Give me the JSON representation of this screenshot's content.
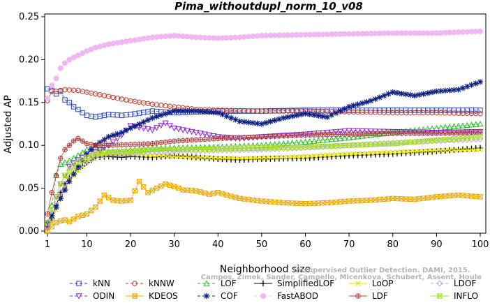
{
  "chart_data": {
    "type": "line",
    "title": "Pima_withoutdupl_norm_10_v08",
    "xlabel": "Neighborhood size",
    "ylabel": "Adjusted AP",
    "xlim": [
      1,
      100
    ],
    "ylim": [
      0,
      0.25
    ],
    "xticks": [
      1,
      10,
      20,
      30,
      40,
      50,
      60,
      70,
      80,
      90,
      100
    ],
    "yticks": [
      0.0,
      0.05,
      0.1,
      0.15,
      0.2,
      0.25
    ],
    "ytick_labels": [
      "0.00",
      "0.05",
      "0.10",
      "0.15",
      "0.20",
      "0.25"
    ],
    "grid": false,
    "legend_position": "bottom",
    "credit": "Campos, Zimek, Sander, Campello, Micenkova, Schubert, Assent, Houle",
    "credit_line1": "Unsupervised Outlier Detection. DAMI, 2015.",
    "series": [
      {
        "name": "kNN",
        "color": "#1f3fbf",
        "marker": "square",
        "dash": "4,3",
        "points": [
          [
            1,
            0.166
          ],
          [
            2,
            0.164
          ],
          [
            3,
            0.16
          ],
          [
            4,
            0.163
          ],
          [
            5,
            0.153
          ],
          [
            6,
            0.15
          ],
          [
            7,
            0.145
          ],
          [
            8,
            0.142
          ],
          [
            9,
            0.138
          ],
          [
            10,
            0.135
          ],
          [
            12,
            0.133
          ],
          [
            15,
            0.136
          ],
          [
            18,
            0.135
          ],
          [
            20,
            0.136
          ],
          [
            25,
            0.14
          ],
          [
            30,
            0.138
          ],
          [
            35,
            0.139
          ],
          [
            40,
            0.14
          ],
          [
            50,
            0.14
          ],
          [
            60,
            0.141
          ],
          [
            70,
            0.141
          ],
          [
            80,
            0.141
          ],
          [
            90,
            0.141
          ],
          [
            100,
            0.141
          ]
        ]
      },
      {
        "name": "kNNW",
        "color": "#c0352a",
        "marker": "circle",
        "dash": "4,3",
        "points": [
          [
            1,
            0.152
          ],
          [
            2,
            0.163
          ],
          [
            3,
            0.163
          ],
          [
            5,
            0.165
          ],
          [
            8,
            0.164
          ],
          [
            10,
            0.162
          ],
          [
            12,
            0.16
          ],
          [
            15,
            0.157
          ],
          [
            20,
            0.152
          ],
          [
            25,
            0.148
          ],
          [
            30,
            0.145
          ],
          [
            35,
            0.142
          ],
          [
            40,
            0.141
          ],
          [
            50,
            0.14
          ],
          [
            60,
            0.14
          ],
          [
            70,
            0.139
          ],
          [
            80,
            0.138
          ],
          [
            90,
            0.138
          ],
          [
            100,
            0.137
          ]
        ]
      },
      {
        "name": "LOF",
        "color": "#22bb22",
        "marker": "triangle",
        "dash": "4,3",
        "points": [
          [
            1,
            0.008
          ],
          [
            2,
            0.03
          ],
          [
            3,
            0.065
          ],
          [
            4,
            0.078
          ],
          [
            5,
            0.08
          ],
          [
            6,
            0.082
          ],
          [
            8,
            0.088
          ],
          [
            10,
            0.095
          ],
          [
            12,
            0.098
          ],
          [
            15,
            0.092
          ],
          [
            18,
            0.093
          ],
          [
            20,
            0.094
          ],
          [
            25,
            0.096
          ],
          [
            30,
            0.097
          ],
          [
            40,
            0.098
          ],
          [
            50,
            0.1
          ],
          [
            60,
            0.104
          ],
          [
            70,
            0.109
          ],
          [
            80,
            0.115
          ],
          [
            90,
            0.12
          ],
          [
            100,
            0.125
          ]
        ]
      },
      {
        "name": "SimplifiedLOF",
        "color": "#000000",
        "marker": "plus",
        "dash": "",
        "points": [
          [
            1,
            0.005
          ],
          [
            2,
            0.015
          ],
          [
            3,
            0.03
          ],
          [
            4,
            0.045
          ],
          [
            5,
            0.055
          ],
          [
            6,
            0.062
          ],
          [
            8,
            0.072
          ],
          [
            10,
            0.08
          ],
          [
            12,
            0.086
          ],
          [
            15,
            0.087
          ],
          [
            18,
            0.086
          ],
          [
            20,
            0.087
          ],
          [
            25,
            0.086
          ],
          [
            30,
            0.088
          ],
          [
            35,
            0.086
          ],
          [
            40,
            0.084
          ],
          [
            45,
            0.083
          ],
          [
            50,
            0.084
          ],
          [
            60,
            0.085
          ],
          [
            70,
            0.088
          ],
          [
            80,
            0.09
          ],
          [
            90,
            0.093
          ],
          [
            100,
            0.097
          ]
        ]
      },
      {
        "name": "LoOP",
        "color": "#e8e000",
        "marker": "x",
        "dash": "",
        "points": [
          [
            1,
            0.003
          ],
          [
            2,
            0.01
          ],
          [
            3,
            0.025
          ],
          [
            4,
            0.04
          ],
          [
            5,
            0.05
          ],
          [
            6,
            0.06
          ],
          [
            8,
            0.07
          ],
          [
            10,
            0.08
          ],
          [
            12,
            0.088
          ],
          [
            15,
            0.09
          ],
          [
            20,
            0.09
          ],
          [
            25,
            0.088
          ],
          [
            30,
            0.087
          ],
          [
            40,
            0.085
          ],
          [
            50,
            0.085
          ],
          [
            60,
            0.087
          ],
          [
            70,
            0.09
          ],
          [
            80,
            0.092
          ],
          [
            90,
            0.094
          ],
          [
            100,
            0.095
          ]
        ]
      },
      {
        "name": "LDOF",
        "color": "#b0a8e0",
        "marker": "diamond",
        "dash": "4,3",
        "points": [
          [
            1,
            0.004
          ],
          [
            2,
            0.012
          ],
          [
            3,
            0.03
          ],
          [
            4,
            0.045
          ],
          [
            5,
            0.055
          ],
          [
            6,
            0.065
          ],
          [
            8,
            0.075
          ],
          [
            10,
            0.082
          ],
          [
            12,
            0.086
          ],
          [
            15,
            0.09
          ],
          [
            20,
            0.09
          ],
          [
            25,
            0.092
          ],
          [
            30,
            0.093
          ],
          [
            40,
            0.094
          ],
          [
            50,
            0.095
          ],
          [
            60,
            0.097
          ],
          [
            70,
            0.1
          ],
          [
            80,
            0.103
          ],
          [
            90,
            0.105
          ],
          [
            100,
            0.107
          ]
        ]
      },
      {
        "name": "ODIN",
        "color": "#8b22cc",
        "marker": "triangle-down",
        "dash": "4,3",
        "points": [
          [
            1,
            0.005
          ],
          [
            2,
            0.02
          ],
          [
            3,
            0.04
          ],
          [
            4,
            0.055
          ],
          [
            5,
            0.065
          ],
          [
            6,
            0.075
          ],
          [
            8,
            0.083
          ],
          [
            10,
            0.088
          ],
          [
            12,
            0.092
          ],
          [
            15,
            0.1
          ],
          [
            18,
            0.112
          ],
          [
            20,
            0.123
          ],
          [
            25,
            0.118
          ],
          [
            28,
            0.126
          ],
          [
            30,
            0.12
          ],
          [
            35,
            0.115
          ],
          [
            40,
            0.11
          ],
          [
            45,
            0.108
          ],
          [
            50,
            0.11
          ],
          [
            60,
            0.113
          ],
          [
            70,
            0.117
          ],
          [
            80,
            0.116
          ],
          [
            90,
            0.115
          ],
          [
            100,
            0.116
          ]
        ]
      },
      {
        "name": "KDEOS",
        "color": "#e8a800",
        "marker": "square-x",
        "dash": "",
        "points": [
          [
            1,
            0.0
          ],
          [
            2,
            0.005
          ],
          [
            3,
            0.01
          ],
          [
            4,
            0.012
          ],
          [
            5,
            0.013
          ],
          [
            6,
            0.011
          ],
          [
            8,
            0.017
          ],
          [
            10,
            0.02
          ],
          [
            12,
            0.028
          ],
          [
            14,
            0.042
          ],
          [
            16,
            0.036
          ],
          [
            18,
            0.035
          ],
          [
            20,
            0.036
          ],
          [
            22,
            0.058
          ],
          [
            24,
            0.045
          ],
          [
            26,
            0.05
          ],
          [
            28,
            0.055
          ],
          [
            30,
            0.052
          ],
          [
            32,
            0.048
          ],
          [
            35,
            0.047
          ],
          [
            38,
            0.043
          ],
          [
            40,
            0.045
          ],
          [
            42,
            0.042
          ],
          [
            45,
            0.038
          ],
          [
            50,
            0.035
          ],
          [
            55,
            0.033
          ],
          [
            60,
            0.032
          ],
          [
            65,
            0.033
          ],
          [
            70,
            0.035
          ],
          [
            75,
            0.036
          ],
          [
            80,
            0.038
          ],
          [
            85,
            0.037
          ],
          [
            90,
            0.04
          ],
          [
            95,
            0.042
          ],
          [
            100,
            0.04
          ]
        ]
      },
      {
        "name": "COF",
        "color": "#0c1f80",
        "marker": "asterisk",
        "dash": "4,3",
        "points": [
          [
            1,
            0.01
          ],
          [
            2,
            0.018
          ],
          [
            3,
            0.028
          ],
          [
            4,
            0.038
          ],
          [
            5,
            0.048
          ],
          [
            6,
            0.058
          ],
          [
            8,
            0.075
          ],
          [
            10,
            0.09
          ],
          [
            12,
            0.1
          ],
          [
            15,
            0.11
          ],
          [
            18,
            0.115
          ],
          [
            20,
            0.12
          ],
          [
            25,
            0.132
          ],
          [
            30,
            0.14
          ],
          [
            35,
            0.14
          ],
          [
            40,
            0.138
          ],
          [
            45,
            0.128
          ],
          [
            50,
            0.125
          ],
          [
            55,
            0.132
          ],
          [
            60,
            0.137
          ],
          [
            65,
            0.133
          ],
          [
            70,
            0.145
          ],
          [
            75,
            0.152
          ],
          [
            80,
            0.162
          ],
          [
            85,
            0.158
          ],
          [
            90,
            0.163
          ],
          [
            95,
            0.165
          ],
          [
            100,
            0.174
          ]
        ]
      },
      {
        "name": "FastABOD",
        "color": "#f0b8f0",
        "marker": "circle-filled",
        "dash": "4,3",
        "points": [
          [
            1,
            0.155
          ],
          [
            2,
            0.17
          ],
          [
            3,
            0.178
          ],
          [
            4,
            0.19
          ],
          [
            5,
            0.196
          ],
          [
            6,
            0.2
          ],
          [
            8,
            0.205
          ],
          [
            10,
            0.21
          ],
          [
            12,
            0.214
          ],
          [
            15,
            0.218
          ],
          [
            20,
            0.222
          ],
          [
            25,
            0.226
          ],
          [
            30,
            0.228
          ],
          [
            35,
            0.226
          ],
          [
            40,
            0.225
          ],
          [
            45,
            0.226
          ],
          [
            50,
            0.228
          ],
          [
            60,
            0.229
          ],
          [
            70,
            0.23
          ],
          [
            80,
            0.231
          ],
          [
            90,
            0.231
          ],
          [
            100,
            0.233
          ]
        ]
      },
      {
        "name": "LDF",
        "color": "#b04040",
        "marker": "circle-plus",
        "dash": "",
        "points": [
          [
            1,
            0.02
          ],
          [
            2,
            0.045
          ],
          [
            3,
            0.065
          ],
          [
            4,
            0.085
          ],
          [
            5,
            0.095
          ],
          [
            6,
            0.1
          ],
          [
            7,
            0.105
          ],
          [
            8,
            0.108
          ],
          [
            10,
            0.102
          ],
          [
            12,
            0.1
          ],
          [
            15,
            0.1
          ],
          [
            20,
            0.101
          ],
          [
            25,
            0.102
          ],
          [
            30,
            0.105
          ],
          [
            40,
            0.108
          ],
          [
            50,
            0.11
          ],
          [
            60,
            0.112
          ],
          [
            70,
            0.113
          ],
          [
            80,
            0.114
          ],
          [
            90,
            0.114
          ],
          [
            100,
            0.115
          ]
        ]
      },
      {
        "name": "INFLO",
        "color": "#a8dc28",
        "marker": "square-x",
        "dash": "",
        "points": [
          [
            1,
            0.01
          ],
          [
            2,
            0.025
          ],
          [
            3,
            0.04
          ],
          [
            4,
            0.055
          ],
          [
            5,
            0.065
          ],
          [
            6,
            0.07
          ],
          [
            8,
            0.08
          ],
          [
            10,
            0.086
          ],
          [
            12,
            0.09
          ],
          [
            15,
            0.092
          ],
          [
            20,
            0.093
          ],
          [
            25,
            0.095
          ],
          [
            30,
            0.095
          ],
          [
            40,
            0.096
          ],
          [
            50,
            0.097
          ],
          [
            60,
            0.098
          ],
          [
            70,
            0.1
          ],
          [
            80,
            0.102
          ],
          [
            90,
            0.106
          ],
          [
            100,
            0.11
          ]
        ]
      }
    ]
  }
}
